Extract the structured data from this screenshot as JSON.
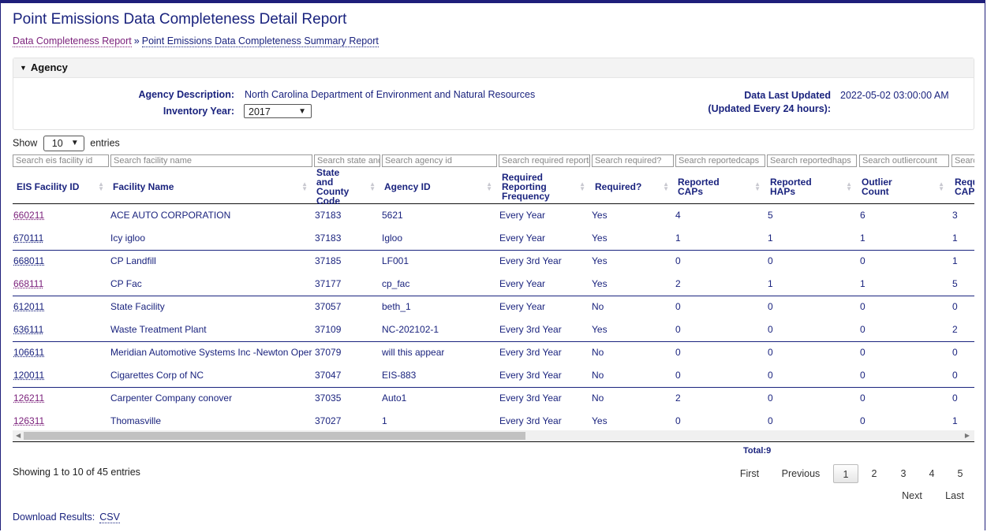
{
  "title": "Point Emissions Data Completeness Detail Report",
  "breadcrumb": {
    "link1": "Data Completeness Report",
    "separator": "»",
    "link2": "Point Emissions Data Completeness Summary Report"
  },
  "agency": {
    "header": "Agency",
    "description_label": "Agency Description:",
    "description_value": "North Carolina Department of Environment and Natural Resources",
    "year_label": "Inventory Year:",
    "year_value": "2017",
    "updated_label": "Data Last Updated",
    "updated_sub": "(Updated Every 24 hours):",
    "updated_value": "2022-05-02 03:00:00 AM"
  },
  "length": {
    "show": "Show",
    "value": "10",
    "entries": "entries"
  },
  "filters": [
    "Search eis facility id",
    "Search facility name",
    "Search state and",
    "Search agency id",
    "Search required reportir",
    "Search required?",
    "Search reportedcaps",
    "Search reportedhaps",
    "Search outliercount",
    "Searc"
  ],
  "columns": [
    "EIS Facility ID",
    "Facility Name",
    "State and County Code",
    "Agency ID",
    "Required Reporting Frequency",
    "Required?",
    "Reported CAPs",
    "Reported HAPs",
    "Outlier Count",
    "Required CAPs"
  ],
  "rows": [
    {
      "id": "660211",
      "name": "ACE AUTO CORPORATION",
      "code": "37183",
      "agency": "5621",
      "freq": "Every Year",
      "req": "Yes",
      "caps": "4",
      "haps": "5",
      "outlier": "6",
      "rcaps": "3"
    },
    {
      "id": "670111",
      "name": "Icy igloo",
      "code": "37183",
      "agency": "Igloo",
      "freq": "Every Year",
      "req": "Yes",
      "caps": "1",
      "haps": "1",
      "outlier": "1",
      "rcaps": "1"
    },
    {
      "id": "668011",
      "name": "CP Landfill",
      "code": "37185",
      "agency": "LF001",
      "freq": "Every 3rd Year",
      "req": "Yes",
      "caps": "0",
      "haps": "0",
      "outlier": "0",
      "rcaps": "1"
    },
    {
      "id": "668111",
      "name": "CP Fac",
      "code": "37177",
      "agency": "cp_fac",
      "freq": "Every Year",
      "req": "Yes",
      "caps": "2",
      "haps": "1",
      "outlier": "1",
      "rcaps": "5"
    },
    {
      "id": "612011",
      "name": "State Facility",
      "code": "37057",
      "agency": "beth_1",
      "freq": "Every Year",
      "req": "No",
      "caps": "0",
      "haps": "0",
      "outlier": "0",
      "rcaps": "0"
    },
    {
      "id": "636111",
      "name": "Waste Treatment Plant",
      "code": "37109",
      "agency": "NC-202102-1",
      "freq": "Every 3rd Year",
      "req": "Yes",
      "caps": "0",
      "haps": "0",
      "outlier": "0",
      "rcaps": "2"
    },
    {
      "id": "106611",
      "name": "Meridian Automotive Systems Inc -Newton Operations",
      "code": "37079",
      "agency": "will this appear",
      "freq": "Every 3rd Year",
      "req": "No",
      "caps": "0",
      "haps": "0",
      "outlier": "0",
      "rcaps": "0"
    },
    {
      "id": "120011",
      "name": "Cigarettes Corp of NC",
      "code": "37047",
      "agency": "EIS-883",
      "freq": "Every 3rd Year",
      "req": "No",
      "caps": "0",
      "haps": "0",
      "outlier": "0",
      "rcaps": "0"
    },
    {
      "id": "126211",
      "name": "Carpenter Company conover",
      "code": "37035",
      "agency": "Auto1",
      "freq": "Every 3rd Year",
      "req": "No",
      "caps": "2",
      "haps": "0",
      "outlier": "0",
      "rcaps": "0"
    },
    {
      "id": "126311",
      "name": "Thomasville",
      "code": "37027",
      "agency": "1",
      "freq": "Every 3rd Year",
      "req": "Yes",
      "caps": "0",
      "haps": "0",
      "outlier": "0",
      "rcaps": "1"
    }
  ],
  "total": "Total:9",
  "showing": "Showing 1 to 10 of 45 entries",
  "pager": {
    "first": "First",
    "previous": "Previous",
    "pages": [
      "1",
      "2",
      "3",
      "4",
      "5"
    ],
    "next": "Next",
    "last": "Last"
  },
  "download": {
    "label": "Download Results:",
    "csv": "CSV"
  }
}
